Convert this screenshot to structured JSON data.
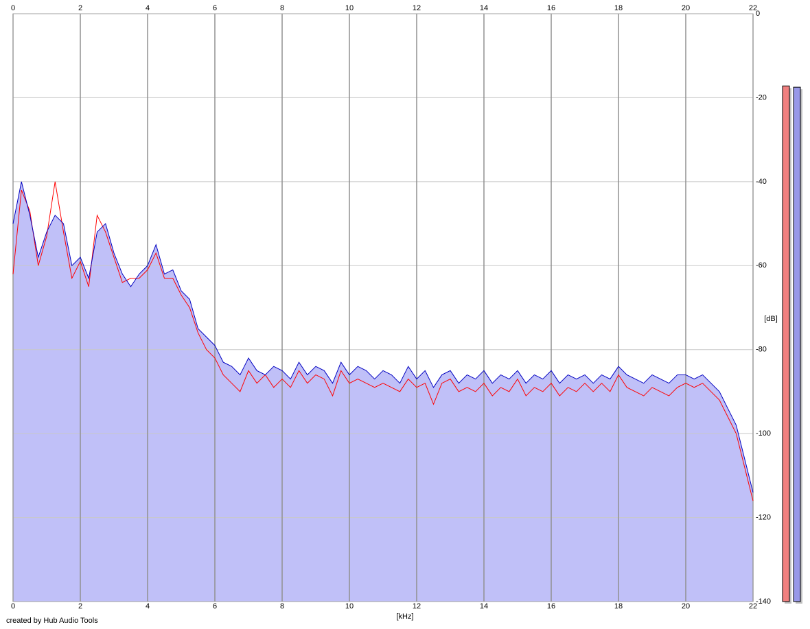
{
  "chart_data": {
    "type": "line",
    "x": [
      0,
      0.25,
      0.5,
      0.75,
      1,
      1.25,
      1.5,
      1.75,
      2,
      2.25,
      2.5,
      2.75,
      3,
      3.25,
      3.5,
      3.75,
      4,
      4.25,
      4.5,
      4.75,
      5,
      5.25,
      5.5,
      5.75,
      6,
      6.25,
      6.5,
      6.75,
      7,
      7.25,
      7.5,
      7.75,
      8,
      8.25,
      8.5,
      8.75,
      9,
      9.25,
      9.5,
      9.75,
      10,
      10.25,
      10.5,
      10.75,
      11,
      11.25,
      11.5,
      11.75,
      12,
      12.25,
      12.5,
      12.75,
      13,
      13.25,
      13.5,
      13.75,
      14,
      14.25,
      14.5,
      14.75,
      15,
      15.25,
      15.5,
      15.75,
      16,
      16.25,
      16.5,
      16.75,
      17,
      17.25,
      17.5,
      17.75,
      18,
      18.25,
      18.5,
      18.75,
      19,
      19.25,
      19.5,
      19.75,
      20,
      20.25,
      20.5,
      20.75,
      21,
      21.25,
      21.5,
      21.75,
      22
    ],
    "series": [
      {
        "color": "#ff0000",
        "values": [
          -62,
          -42,
          -47,
          -60,
          -53,
          -40,
          -52,
          -63,
          -59,
          -65,
          -48,
          -52,
          -58,
          -64,
          -63,
          -63,
          -61,
          -57,
          -63,
          -63,
          -67,
          -70,
          -76,
          -80,
          -82,
          -86,
          -88,
          -90,
          -85,
          -88,
          -86,
          -89,
          -87,
          -89,
          -85,
          -88,
          -86,
          -87,
          -91,
          -85,
          -88,
          -87,
          -88,
          -89,
          -88,
          -89,
          -90,
          -87,
          -89,
          -88,
          -93,
          -88,
          -87,
          -90,
          -89,
          -90,
          -88,
          -91,
          -89,
          -90,
          -87,
          -91,
          -89,
          -90,
          -88,
          -91,
          -89,
          -90,
          -88,
          -90,
          -88,
          -90,
          -86,
          -89,
          -90,
          -91,
          -89,
          -90,
          -91,
          -89,
          -88,
          -89,
          -88,
          -90,
          -92,
          -96,
          -100,
          -108,
          -116
        ]
      },
      {
        "color": "#0000c0",
        "values": [
          -50,
          -40,
          -48,
          -58,
          -52,
          -48,
          -50,
          -60,
          -58,
          -63,
          -52,
          -50,
          -57,
          -62,
          -65,
          -62,
          -60,
          -55,
          -62,
          -61,
          -66,
          -68,
          -75,
          -77,
          -79,
          -83,
          -84,
          -86,
          -82,
          -85,
          -86,
          -84,
          -85,
          -87,
          -83,
          -86,
          -84,
          -85,
          -88,
          -83,
          -86,
          -84,
          -85,
          -87,
          -85,
          -86,
          -88,
          -84,
          -87,
          -85,
          -89,
          -86,
          -85,
          -88,
          -86,
          -87,
          -85,
          -88,
          -86,
          -87,
          -85,
          -88,
          -86,
          -87,
          -85,
          -88,
          -86,
          -87,
          -86,
          -88,
          -86,
          -87,
          -84,
          -86,
          -87,
          -88,
          -86,
          -87,
          -88,
          -86,
          -86,
          -87,
          -86,
          -88,
          -90,
          -94,
          -98,
          -106,
          -114
        ]
      }
    ],
    "fill": "#c0c0f8",
    "meters": [
      {
        "color": "#f08080",
        "value": -17.2
      },
      {
        "color": "#9898e8",
        "value": -17.5
      }
    ],
    "xlim": [
      0,
      22
    ],
    "xticks": [
      0,
      2,
      4,
      6,
      8,
      10,
      12,
      14,
      16,
      18,
      20,
      22
    ],
    "ylim": [
      -140,
      0
    ],
    "yticks": [
      0,
      -20,
      -40,
      -60,
      -80,
      -100,
      -120,
      -140
    ],
    "xlabel": "[kHz]",
    "ylabel": "[dB]",
    "credit": "created by Hub Audio Tools",
    "grid": true
  }
}
